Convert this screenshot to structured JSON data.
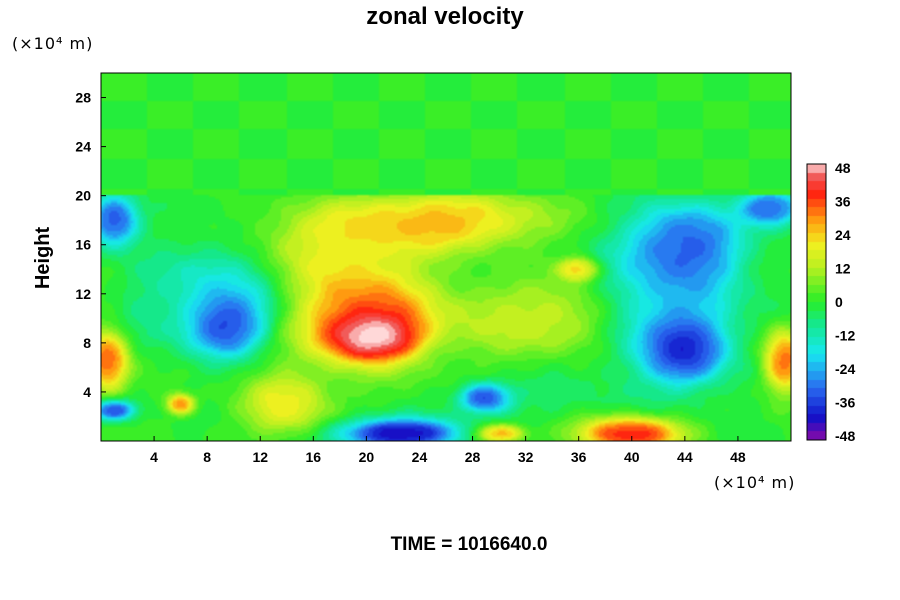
{
  "chart_data": {
    "type": "heatmap",
    "title": "zonal velocity",
    "ylabel": "Height",
    "xlabel": "",
    "x_unit": "(×10⁴ m)",
    "y_unit": "(×10⁴ m)",
    "xlim": [
      0,
      52
    ],
    "ylim": [
      0,
      30
    ],
    "x_ticks": [
      4,
      8,
      12,
      16,
      20,
      24,
      28,
      32,
      36,
      40,
      44,
      48
    ],
    "y_ticks": [
      4,
      8,
      12,
      16,
      20,
      24,
      28
    ],
    "colorbar": {
      "min": -48,
      "max": 48,
      "tick_labels": [
        48,
        36,
        24,
        12,
        0,
        -12,
        -24,
        -36,
        -48
      ],
      "stops": [
        {
          "v": -48,
          "color": "#8a0aa8"
        },
        {
          "v": -40,
          "color": "#1010c8"
        },
        {
          "v": -30,
          "color": "#2a6af0"
        },
        {
          "v": -18,
          "color": "#18e8f0"
        },
        {
          "v": -8,
          "color": "#14e890"
        },
        {
          "v": 0,
          "color": "#28ee28"
        },
        {
          "v": 12,
          "color": "#b8f020"
        },
        {
          "v": 20,
          "color": "#f0f020"
        },
        {
          "v": 28,
          "color": "#ffa010"
        },
        {
          "v": 38,
          "color": "#ff2010"
        },
        {
          "v": 44,
          "color": "#f06060"
        },
        {
          "v": 48,
          "color": "#ffd8d8"
        }
      ]
    },
    "upper_layer": {
      "from_height": 20,
      "to_height": 30,
      "value": 0
    },
    "features": [
      {
        "x": 20.5,
        "y": 8.5,
        "value": 48,
        "sx": 3.0,
        "sy": 1.6
      },
      {
        "x": 20,
        "y": 10,
        "value": 40,
        "sx": 5.0,
        "sy": 3.6
      },
      {
        "x": 26,
        "y": 18,
        "value": 28,
        "sx": 7.0,
        "sy": 2.2
      },
      {
        "x": 18,
        "y": 16,
        "value": 20,
        "sx": 6.0,
        "sy": 3.0
      },
      {
        "x": 9.5,
        "y": 9.5,
        "value": -38,
        "sx": 2.6,
        "sy": 2.2
      },
      {
        "x": 9,
        "y": 12,
        "value": -20,
        "sx": 4.0,
        "sy": 4.0
      },
      {
        "x": 44,
        "y": 16,
        "value": -34,
        "sx": 3.8,
        "sy": 3.0
      },
      {
        "x": 44,
        "y": 7.5,
        "value": -42,
        "sx": 2.6,
        "sy": 2.4
      },
      {
        "x": 43,
        "y": 11,
        "value": -22,
        "sx": 5.0,
        "sy": 6.0
      },
      {
        "x": 22.5,
        "y": 0.6,
        "value": -48,
        "sx": 4.5,
        "sy": 1.2
      },
      {
        "x": 29,
        "y": 3.5,
        "value": -44,
        "sx": 1.8,
        "sy": 1.1
      },
      {
        "x": 40,
        "y": 0.6,
        "value": 46,
        "sx": 3.6,
        "sy": 1.3
      },
      {
        "x": 0.5,
        "y": 6.5,
        "value": 38,
        "sx": 1.5,
        "sy": 2.4
      },
      {
        "x": 51.5,
        "y": 6.5,
        "value": 38,
        "sx": 1.5,
        "sy": 2.4
      },
      {
        "x": 1,
        "y": 18,
        "value": -38,
        "sx": 1.8,
        "sy": 2.0
      },
      {
        "x": 50.5,
        "y": 19,
        "value": -36,
        "sx": 2.2,
        "sy": 1.4
      },
      {
        "x": 6,
        "y": 3,
        "value": 34,
        "sx": 1.0,
        "sy": 0.8
      },
      {
        "x": 1,
        "y": 2.5,
        "value": -40,
        "sx": 1.5,
        "sy": 0.8
      },
      {
        "x": 36,
        "y": 14,
        "value": 30,
        "sx": 1.4,
        "sy": 0.9
      },
      {
        "x": 35,
        "y": 10,
        "value": 16,
        "sx": 3.5,
        "sy": 2.5
      },
      {
        "x": 30,
        "y": 10,
        "value": 12,
        "sx": 4.0,
        "sy": 3.0
      },
      {
        "x": 14,
        "y": 3,
        "value": 22,
        "sx": 3.0,
        "sy": 2.5
      },
      {
        "x": 34,
        "y": 3.5,
        "value": -4,
        "sx": 4.5,
        "sy": 2.0
      },
      {
        "x": 4,
        "y": 11,
        "value": -6,
        "sx": 2.5,
        "sy": 3.5
      },
      {
        "x": 30,
        "y": 0.6,
        "value": 34,
        "sx": 1.8,
        "sy": 0.7
      }
    ]
  },
  "footer": {
    "time_label": "TIME = 1016640.0"
  }
}
